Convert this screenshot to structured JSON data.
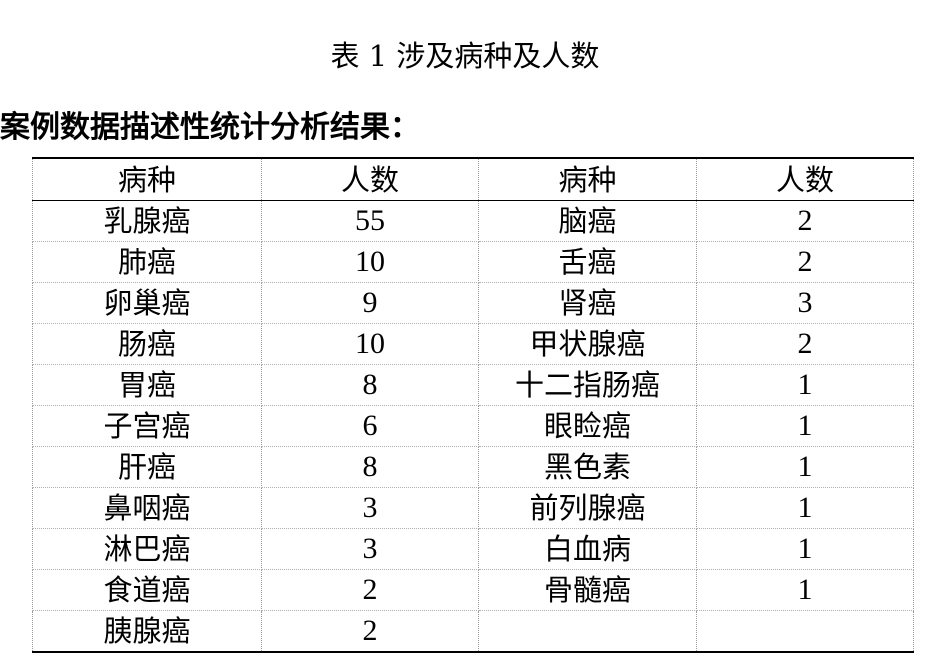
{
  "caption": "表 1 涉及病种及人数",
  "heading": "案例数据描述性统计分析结果：",
  "table": {
    "headers": [
      "病种",
      "人数",
      "病种",
      "人数"
    ],
    "rows": [
      [
        "乳腺癌",
        "55",
        "脑癌",
        "2"
      ],
      [
        "肺癌",
        "10",
        "舌癌",
        "2"
      ],
      [
        "卵巢癌",
        "9",
        "肾癌",
        "3"
      ],
      [
        "肠癌",
        "10",
        "甲状腺癌",
        "2"
      ],
      [
        "胃癌",
        "8",
        "十二指肠癌",
        "1"
      ],
      [
        "子宫癌",
        "6",
        "眼睑癌",
        "1"
      ],
      [
        "肝癌",
        "8",
        "黑色素",
        "1"
      ],
      [
        "鼻咽癌",
        "3",
        "前列腺癌",
        "1"
      ],
      [
        "淋巴癌",
        "3",
        "白血病",
        "1"
      ],
      [
        "食道癌",
        "2",
        "骨髓癌",
        "1"
      ],
      [
        "胰腺癌",
        "2",
        "",
        ""
      ]
    ]
  }
}
